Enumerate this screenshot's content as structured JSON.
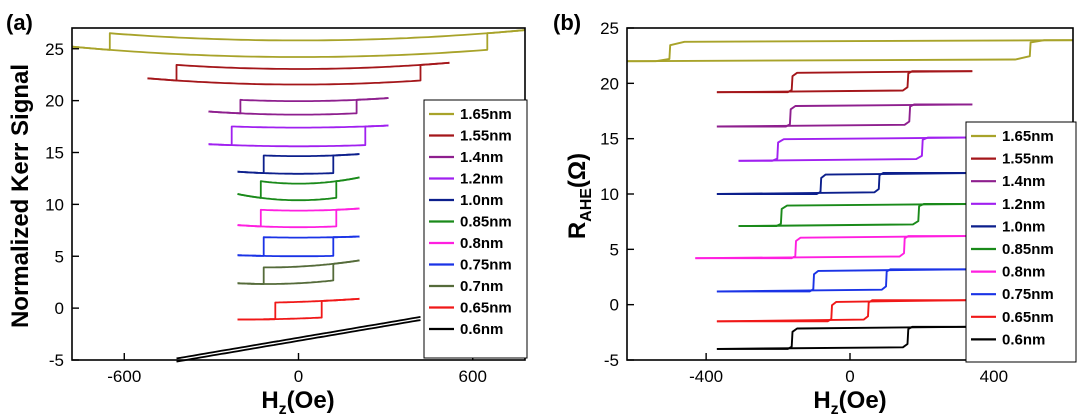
{
  "chart_data": [
    {
      "type": "line",
      "panel_label": "(a)",
      "xlabel_main": "H",
      "xlabel_sub": "z",
      "xlabel_rest": "(Oe)",
      "ylabel": "Normalized Kerr Signal",
      "xlim": [
        -780,
        780
      ],
      "ylim": [
        -5,
        27
      ],
      "xticks": [
        -600,
        0,
        600
      ],
      "yticks": [
        -5,
        0,
        5,
        10,
        15,
        20,
        25
      ],
      "legend_position": "right",
      "series": [
        {
          "name": "1.65nm",
          "color": "#a8a32a",
          "offset": 25,
          "hc": 650,
          "height": 1.6,
          "hmax": 780,
          "curv": 1.0,
          "slope": 0
        },
        {
          "name": "1.55nm",
          "color": "#a4161a",
          "offset": 22.3,
          "hc": 420,
          "height": 1.5,
          "hmax": 520,
          "curv": 0.6,
          "slope": 0
        },
        {
          "name": "1.4nm",
          "color": "#8e1f8e",
          "offset": 19.3,
          "hc": 200,
          "height": 1.3,
          "hmax": 310,
          "curv": 0.3,
          "slope": 0
        },
        {
          "name": "1.2nm",
          "color": "#a020f0",
          "offset": 16.5,
          "hc": 230,
          "height": 1.8,
          "hmax": 310,
          "curv": 0.2,
          "slope": 0
        },
        {
          "name": "1.0nm",
          "color": "#0c1f8c",
          "offset": 13.8,
          "hc": 120,
          "height": 1.7,
          "hmax": 210,
          "curv": 0.2,
          "slope": 0
        },
        {
          "name": "0.85nm",
          "color": "#1a8a1a",
          "offset": 11.2,
          "hc": 130,
          "height": 1.6,
          "hmax": 210,
          "curv": 0.6,
          "slope": 0
        },
        {
          "name": "0.8nm",
          "color": "#ff1fe0",
          "offset": 8.6,
          "hc": 130,
          "height": 1.6,
          "hmax": 210,
          "curv": 0.2,
          "slope": 0
        },
        {
          "name": "0.75nm",
          "color": "#1a33e6",
          "offset": 5.9,
          "hc": 120,
          "height": 1.8,
          "hmax": 210,
          "curv": 0.1,
          "slope": 0
        },
        {
          "name": "0.7nm",
          "color": "#556b3a",
          "offset": 3.2,
          "hc": 120,
          "height": 1.6,
          "hmax": 210,
          "curv": 0.3,
          "slope": 0.3
        },
        {
          "name": "0.65nm",
          "color": "#f01818",
          "offset": -0.2,
          "hc": 80,
          "height": 1.6,
          "hmax": 210,
          "curv": 0.1,
          "slope": 0.2
        },
        {
          "name": "0.6nm",
          "color": "#000000",
          "offset": -3,
          "hc": 0,
          "height": 0.3,
          "hmax": 420,
          "curv": 0,
          "slope": 2.0
        }
      ]
    },
    {
      "type": "line",
      "panel_label": "(b)",
      "xlabel_main": "H",
      "xlabel_sub": "z",
      "xlabel_rest": "(Oe)",
      "ylabel_main": "R",
      "ylabel_sub": "AHE",
      "ylabel_rest": "(Ω)",
      "xlim": [
        -620,
        620
      ],
      "ylim": [
        -5,
        25
      ],
      "xticks": [
        -400,
        0,
        400
      ],
      "yticks": [
        -5,
        0,
        5,
        10,
        15,
        20,
        25
      ],
      "legend_position": "right",
      "series": [
        {
          "name": "1.65nm",
          "color": "#a8a32a",
          "low": 22,
          "high": 23.9,
          "hc": 500,
          "hmin": -620,
          "hmax": 620
        },
        {
          "name": "1.55nm",
          "color": "#a4161a",
          "low": 19.2,
          "high": 21.1,
          "hc": 160,
          "hmin": -370,
          "hmax": 340
        },
        {
          "name": "1.4nm",
          "color": "#8e1f8e",
          "low": 16.1,
          "high": 18.1,
          "hc": 165,
          "hmin": -370,
          "hmax": 340
        },
        {
          "name": "1.2nm",
          "color": "#a020f0",
          "low": 13,
          "high": 15.1,
          "hc": 200,
          "hmin": -310,
          "hmax": 330
        },
        {
          "name": "1.0nm",
          "color": "#0c1f8c",
          "low": 10,
          "high": 11.9,
          "hc": 80,
          "hmin": -370,
          "hmax": 340
        },
        {
          "name": "0.85nm",
          "color": "#1a8a1a",
          "low": 7.1,
          "high": 9.1,
          "hc": 190,
          "hmin": -310,
          "hmax": 330
        },
        {
          "name": "0.8nm",
          "color": "#ff1fe0",
          "low": 4.2,
          "high": 6.2,
          "hc": 150,
          "hmin": -430,
          "hmax": 330
        },
        {
          "name": "0.75nm",
          "color": "#1a33e6",
          "low": 1.2,
          "high": 3.2,
          "hc": 100,
          "hmin": -370,
          "hmax": 330
        },
        {
          "name": "0.65nm",
          "color": "#f01818",
          "low": -1.5,
          "high": 0.4,
          "hc": 50,
          "hmin": -370,
          "hmax": 330
        },
        {
          "name": "0.6nm",
          "color": "#000000",
          "low": -4.0,
          "high": -2.0,
          "hc": 160,
          "hmin": -370,
          "hmax": 330
        }
      ]
    }
  ]
}
